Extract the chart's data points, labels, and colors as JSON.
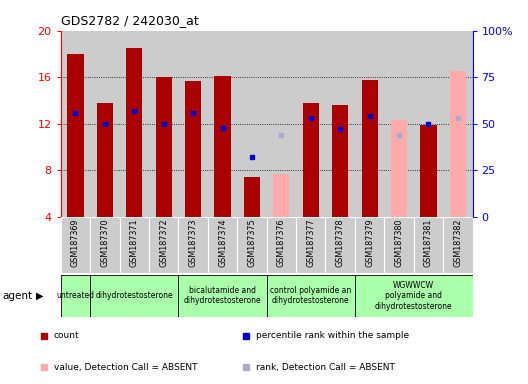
{
  "title": "GDS2782 / 242030_at",
  "samples": [
    "GSM187369",
    "GSM187370",
    "GSM187371",
    "GSM187372",
    "GSM187373",
    "GSM187374",
    "GSM187375",
    "GSM187376",
    "GSM187377",
    "GSM187378",
    "GSM187379",
    "GSM187380",
    "GSM187381",
    "GSM187382"
  ],
  "count_values": [
    18.0,
    13.8,
    18.5,
    16.0,
    15.7,
    16.1,
    7.4,
    null,
    13.8,
    13.6,
    15.8,
    null,
    11.9,
    null
  ],
  "percentile_values": [
    56,
    50,
    57,
    50,
    56,
    48,
    32,
    null,
    53,
    47,
    54,
    null,
    50,
    null
  ],
  "absent_count_values": [
    null,
    null,
    null,
    null,
    null,
    null,
    null,
    7.7,
    null,
    null,
    null,
    12.3,
    null,
    16.5
  ],
  "absent_percentile_values": [
    null,
    null,
    null,
    null,
    null,
    null,
    null,
    44,
    null,
    null,
    null,
    44,
    null,
    53
  ],
  "absent_flags": [
    false,
    false,
    false,
    false,
    false,
    false,
    false,
    true,
    false,
    false,
    false,
    true,
    false,
    true
  ],
  "ylim": [
    4,
    20
  ],
  "yticks": [
    4,
    8,
    12,
    16,
    20
  ],
  "y2lim": [
    0,
    100
  ],
  "y2ticks": [
    0,
    25,
    50,
    75,
    100
  ],
  "y2ticklabels": [
    "0",
    "25",
    "50",
    "75",
    "100%"
  ],
  "groups": [
    {
      "label": "untreated",
      "start": 0,
      "end": 1
    },
    {
      "label": "dihydrotestosterone",
      "start": 1,
      "end": 4
    },
    {
      "label": "bicalutamide and\ndihydrotestosterone",
      "start": 4,
      "end": 7
    },
    {
      "label": "control polyamide an\ndihydrotestosterone",
      "start": 7,
      "end": 10
    },
    {
      "label": "WGWWCW\npolyamide and\ndihydrotestosterone",
      "start": 10,
      "end": 14
    }
  ],
  "bar_color": "#aa0000",
  "percentile_color": "#0000cc",
  "absent_bar_color": "#ffaaaa",
  "absent_percentile_color": "#aaaacc",
  "col_bg_color": "#cccccc",
  "group_bg_color": "#aaffaa",
  "legend_items": [
    {
      "color": "#aa0000",
      "marker": "s",
      "label": "count"
    },
    {
      "color": "#0000cc",
      "marker": "s",
      "label": "percentile rank within the sample"
    },
    {
      "color": "#ffaaaa",
      "marker": "s",
      "label": "value, Detection Call = ABSENT"
    },
    {
      "color": "#aaaacc",
      "marker": "s",
      "label": "rank, Detection Call = ABSENT"
    }
  ]
}
